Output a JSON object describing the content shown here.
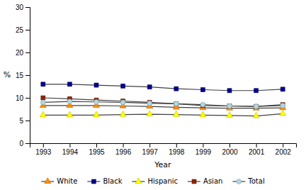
{
  "chart_data": {
    "type": "line",
    "xlabel": "Year",
    "ylabel": "%",
    "x": [
      1993,
      1994,
      1995,
      1996,
      1997,
      1998,
      1999,
      2000,
      2001,
      2002
    ],
    "series": [
      {
        "name": "White",
        "color": "#FF8C00",
        "marker": "triangle",
        "values": [
          8.3,
          8.3,
          8.3,
          8.2,
          8.1,
          7.9,
          7.8,
          7.7,
          7.7,
          7.8
        ]
      },
      {
        "name": "Black",
        "color": "#00008B",
        "marker": "square",
        "values": [
          13.0,
          13.0,
          12.8,
          12.6,
          12.4,
          12.0,
          11.8,
          11.6,
          11.6,
          11.9
        ]
      },
      {
        "name": "Hispanic",
        "color": "#FFFF00",
        "marker": "triangle",
        "values": [
          6.2,
          6.2,
          6.2,
          6.3,
          6.4,
          6.3,
          6.2,
          6.1,
          6.0,
          6.5
        ]
      },
      {
        "name": "Asian",
        "color": "#8B2500",
        "marker": "square",
        "values": [
          10.0,
          9.8,
          9.5,
          9.3,
          9.0,
          8.7,
          8.3,
          8.2,
          8.1,
          8.5
        ]
      },
      {
        "name": "Total",
        "color": "#ADD8E6",
        "marker": "circle",
        "values": [
          9.0,
          9.2,
          9.1,
          9.0,
          8.8,
          8.7,
          8.5,
          8.2,
          8.1,
          8.3
        ]
      }
    ],
    "xlim": [
      1992.5,
      2002.5
    ],
    "xticks": [
      1993,
      1994,
      1995,
      1996,
      1997,
      1998,
      1999,
      2000,
      2001,
      2002
    ],
    "ylim": [
      0,
      30
    ],
    "yticks": [
      0,
      5,
      10,
      15,
      20,
      25,
      30
    ],
    "grid": false,
    "legend": "bottom"
  }
}
